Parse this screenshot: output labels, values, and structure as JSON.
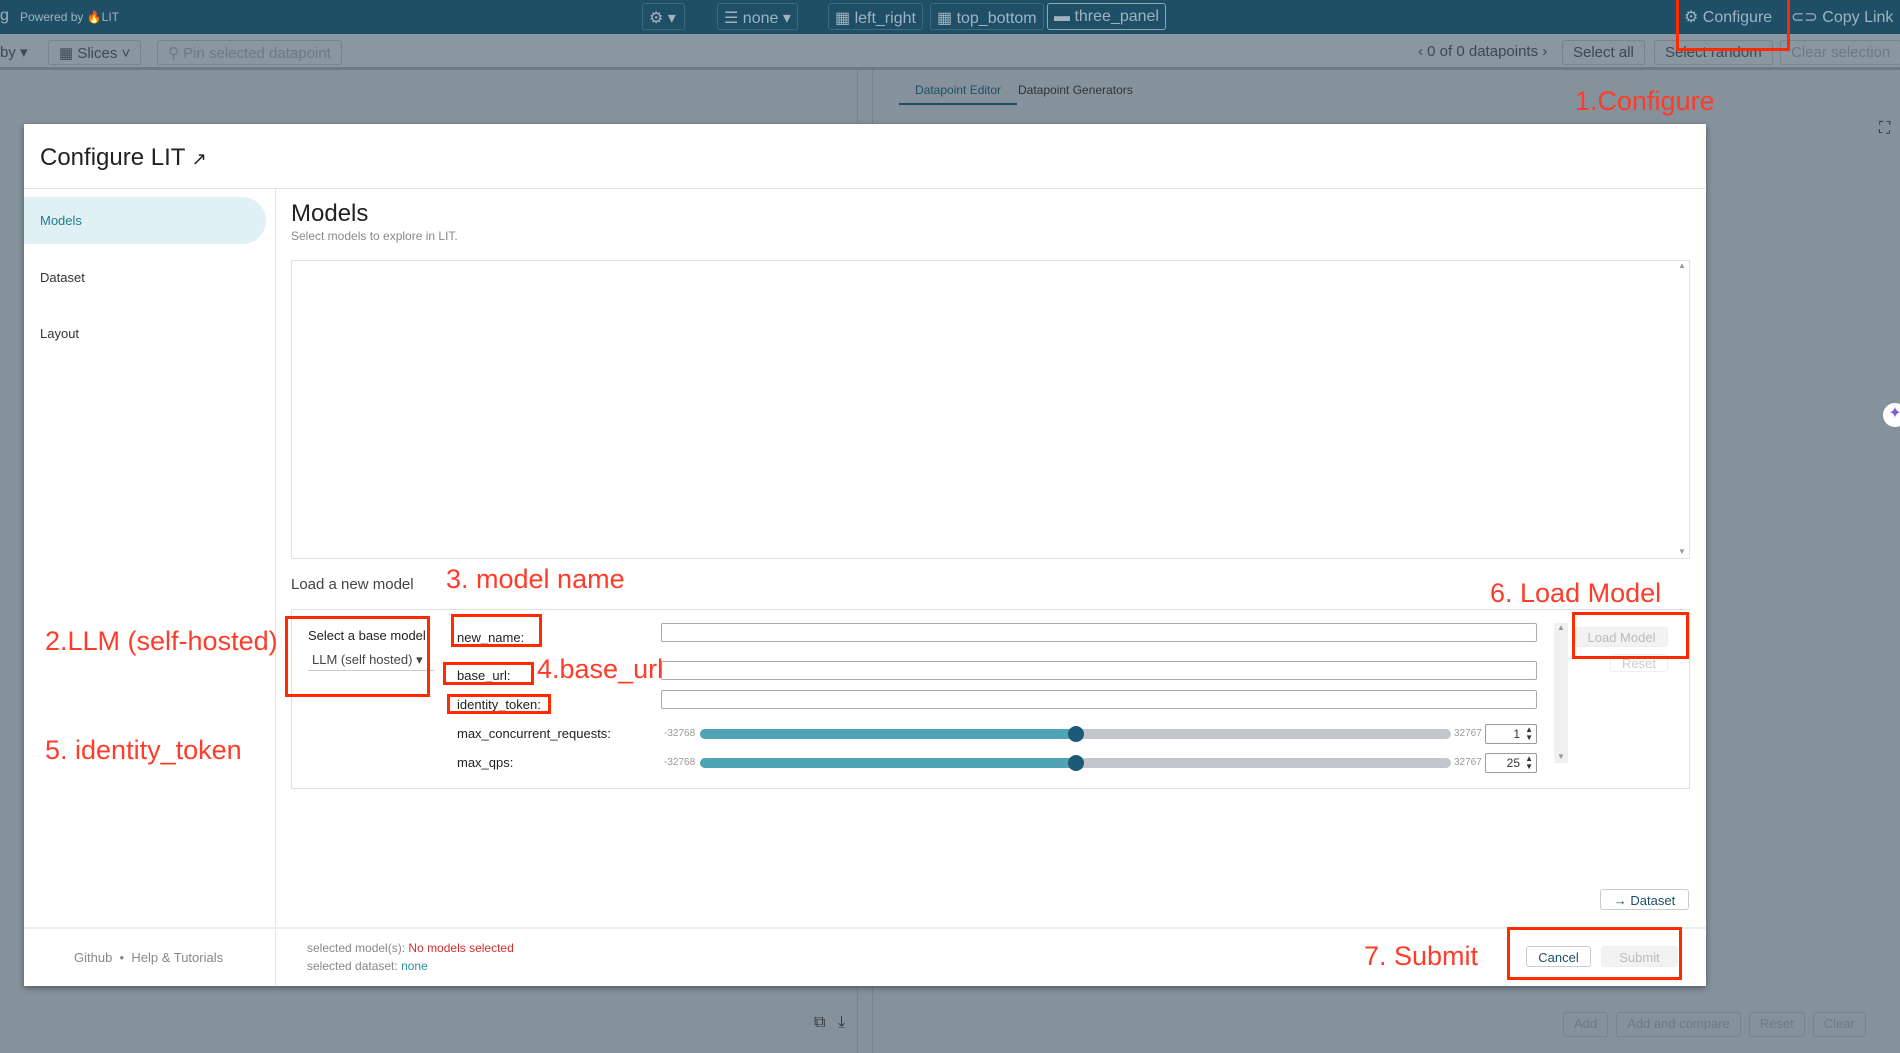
{
  "topbar": {
    "brand": "g",
    "powered_by": "Powered by",
    "lit": "LIT",
    "layouts": [
      "none",
      "left_right",
      "top_bottom",
      "three_panel"
    ],
    "configure": "Configure",
    "copy_link": "Copy Link"
  },
  "toolbar": {
    "group_by": "by",
    "slices": "Slices",
    "pin": "Pin selected datapoint",
    "datapoints": "0 of 0 datapoints",
    "select_all": "Select all",
    "select_random": "Select random",
    "clear_selection": "Clear selection"
  },
  "right_panel": {
    "tabs": [
      "Datapoint Editor",
      "Datapoint Generators"
    ],
    "buttons": [
      "Add",
      "Add and compare",
      "Reset",
      "Clear"
    ]
  },
  "modal": {
    "title": "Configure LIT",
    "sidebar": [
      "Models",
      "Dataset",
      "Layout"
    ],
    "heading": "Models",
    "subtitle": "Select models to explore in LIT.",
    "load_new": "Load a new model",
    "select_base": "Select a base model",
    "base_model": "LLM (self hosted)",
    "fields": {
      "new_name": "new_name:",
      "base_url": "base_url:",
      "identity_token": "identity_token:"
    },
    "sliders": [
      {
        "label": "max_concurrent_requests:",
        "min": "-32768",
        "max": "32767",
        "value": 1
      },
      {
        "label": "max_qps:",
        "min": "-32768",
        "max": "32767",
        "value": 25
      }
    ],
    "load_model": "Load Model",
    "reset": "Reset",
    "next_dataset": "→ Dataset",
    "footer": {
      "github": "Github",
      "sep": "•",
      "help": "Help & Tutorials",
      "sel_models_label": "selected model(s):",
      "sel_models": "No models selected",
      "sel_dataset_label": "selected dataset:",
      "sel_dataset": "none",
      "cancel": "Cancel",
      "submit": "Submit"
    }
  },
  "annotations": [
    "1.Configure",
    "2.LLM (self-hosted)",
    "3. model name",
    "4.base_url",
    "5. identity_token",
    "6. Load Model",
    "7. Submit"
  ],
  "colors": {
    "accent": "#1e4f66",
    "teal": "#4fa3b4",
    "annotation": "#ff2a00",
    "error": "#d32f2f"
  }
}
